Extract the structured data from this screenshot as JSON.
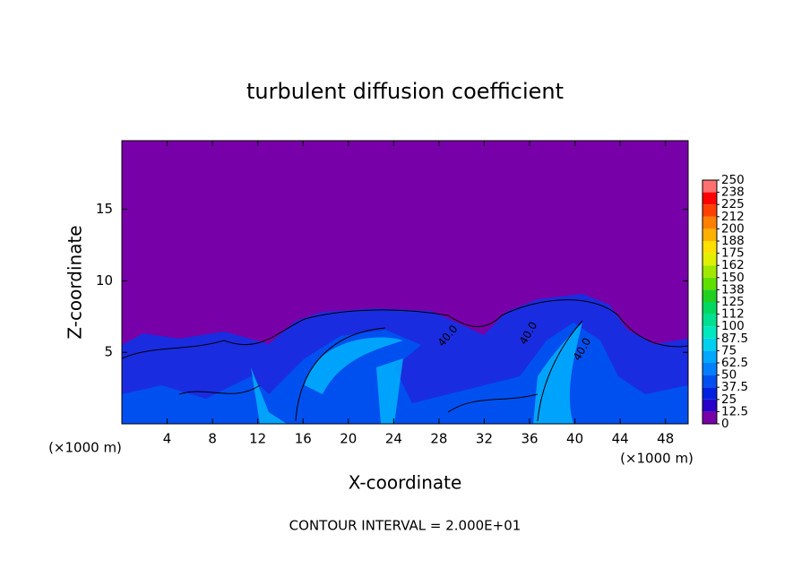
{
  "chart_data": {
    "type": "contour",
    "title": "turbulent diffusion coefficient",
    "xlabel": "X-coordinate",
    "ylabel": "Z-coordinate",
    "x_unit_label": "(×1000 m)",
    "xlim": [
      0,
      50
    ],
    "xticks": [
      4,
      8,
      12,
      16,
      20,
      24,
      28,
      32,
      36,
      40,
      44,
      48
    ],
    "ylim": [
      0,
      19.8
    ],
    "yticks": [
      5,
      10,
      15
    ],
    "colorbar": {
      "levels": [
        0,
        12.5,
        25,
        37.5,
        50,
        62.5,
        75,
        87.5,
        100,
        {
          "value": 112.5,
          "label": "112"
        },
        125,
        {
          "value": 137.5,
          "label": "138"
        },
        150,
        {
          "value": 162.5,
          "label": "162"
        },
        175,
        {
          "value": 187.5,
          "label": "188"
        },
        200,
        {
          "value": 212.5,
          "label": "212"
        },
        225,
        {
          "value": 237.5,
          "label": "238"
        },
        250
      ],
      "colors": [
        "#7800a8",
        "#2800c8",
        "#0020e0",
        "#0050f0",
        "#0080ff",
        "#00a8ff",
        "#00d0f0",
        "#00e8c0",
        "#00e090",
        "#00d860",
        "#20d020",
        "#60e000",
        "#a0e800",
        "#e0f000",
        "#ffe000",
        "#ffb000",
        "#ff8000",
        "#ff4000",
        "#ff0000",
        "#ff7070"
      ]
    },
    "contour_labels": [
      "40.0",
      "40.0",
      "40.0"
    ],
    "footer": "CONTOUR INTERVAL = 2.000E+01"
  }
}
